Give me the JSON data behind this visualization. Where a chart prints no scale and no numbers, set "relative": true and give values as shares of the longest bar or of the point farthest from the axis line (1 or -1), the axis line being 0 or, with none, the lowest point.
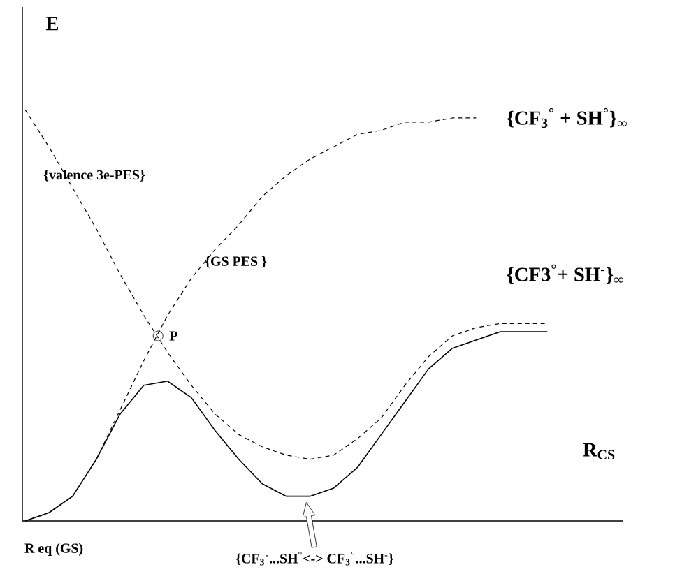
{
  "chart_data": {
    "type": "line",
    "relative": true,
    "xlabel": "R$_{CS}$",
    "ylabel": "E",
    "marker": "none",
    "categories": [
      null,
      null,
      null,
      null,
      null,
      null,
      null,
      null,
      null,
      null,
      null,
      null,
      null,
      null,
      null,
      null,
      null,
      null,
      null,
      null,
      null,
      null,
      null
    ],
    "series": [
      {
        "color": "#000000",
        "line_style": "dashed",
        "values": [
          0.0,
          0.02,
          0.06,
          0.15,
          0.27,
          0.39,
          0.5,
          0.59,
          0.66,
          0.72,
          0.79,
          0.84,
          0.88,
          0.91,
          0.94,
          0.95,
          0.97,
          0.97,
          0.98,
          0.98,
          null,
          null,
          null
        ]
      },
      {
        "color": "#000000",
        "line_style": "dashed",
        "values": [
          1.0,
          0.91,
          0.81,
          0.71,
          0.6,
          0.5,
          0.41,
          0.33,
          0.26,
          0.21,
          0.18,
          0.16,
          0.15,
          0.16,
          0.2,
          0.25,
          0.33,
          0.4,
          0.45,
          0.47,
          0.48,
          0.48,
          0.48
        ]
      },
      {
        "color": "#000000",
        "line_style": "solid",
        "values": [
          0.0,
          0.02,
          0.06,
          0.15,
          0.26,
          0.33,
          0.34,
          0.3,
          0.22,
          0.15,
          0.09,
          0.06,
          0.06,
          0.08,
          0.13,
          0.21,
          0.29,
          0.37,
          0.42,
          0.44,
          0.46,
          0.46,
          0.46
        ]
      }
    ],
    "annotations": [
      "{valence 3e-PES}",
      "{GS  PES }",
      "{CF$_{3}$$^{°}$ + SH$^{°}$}$_{∞}$",
      "{CF3$^{°}$+ SH$^{-}$}$_{∞}$",
      "P",
      "R eq (GS)",
      "{CF$_{3}$$^{-}$...SH$^{°}$<-> CF$_{3}$$^{°}$...SH$^{-}$}"
    ]
  }
}
